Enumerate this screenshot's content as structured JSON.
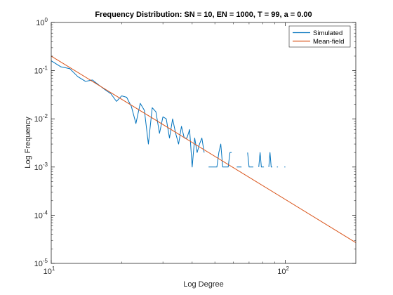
{
  "chart_data": {
    "type": "line",
    "title": "Frequency Distribution: SN = 10, EN = 1000, T = 99, a = 0.00",
    "xlabel": "Log Degree",
    "ylabel": "Log Frequency",
    "xscale": "log",
    "yscale": "log",
    "xlim": [
      10,
      200
    ],
    "ylim": [
      1e-05,
      1
    ],
    "x_ticks": [
      {
        "value": 10,
        "mantissa": "10",
        "exp": "1"
      },
      {
        "value": 100,
        "mantissa": "10",
        "exp": "2"
      }
    ],
    "y_ticks": [
      {
        "value": 1,
        "mantissa": "10",
        "exp": "0"
      },
      {
        "value": 0.1,
        "mantissa": "10",
        "exp": "-1"
      },
      {
        "value": 0.01,
        "mantissa": "10",
        "exp": "-2"
      },
      {
        "value": 0.001,
        "mantissa": "10",
        "exp": "-3"
      },
      {
        "value": 0.0001,
        "mantissa": "10",
        "exp": "-4"
      },
      {
        "value": 1e-05,
        "mantissa": "10",
        "exp": "-5"
      }
    ],
    "grid": false,
    "legend_position": "top-right",
    "series": [
      {
        "name": "Simulated",
        "color": "#0072BD",
        "points": [
          [
            10,
            0.16
          ],
          [
            11,
            0.12
          ],
          [
            12,
            0.11
          ],
          [
            13,
            0.075
          ],
          [
            14,
            0.06
          ],
          [
            15,
            0.064
          ],
          [
            16,
            0.05
          ],
          [
            17,
            0.04
          ],
          [
            18,
            0.033
          ],
          [
            19,
            0.023
          ],
          [
            20,
            0.03
          ],
          [
            21,
            0.028
          ],
          [
            22,
            0.018
          ],
          [
            23,
            0.008
          ],
          [
            24,
            0.021
          ],
          [
            25,
            0.015
          ],
          [
            26,
            0.003
          ],
          [
            27,
            0.017
          ],
          [
            28,
            0.014
          ],
          [
            29,
            0.005
          ],
          [
            30,
            0.011
          ],
          [
            31,
            0.01
          ],
          [
            32,
            0.004
          ],
          [
            33,
            0.01
          ],
          [
            34,
            0.005
          ],
          [
            35,
            0.003
          ],
          [
            36,
            0.007
          ],
          [
            37,
            0.004
          ],
          [
            38,
            0.004
          ],
          [
            39,
            0.006
          ],
          [
            40,
            0.001
          ],
          [
            41,
            0.004
          ],
          [
            42,
            0.002
          ],
          [
            43,
            0.003
          ],
          [
            44,
            0.004
          ],
          [
            45,
            0.002
          ],
          [
            46,
            null
          ],
          [
            47,
            0.001
          ],
          [
            48,
            0.001
          ],
          [
            49,
            0.001
          ],
          [
            50,
            0.001
          ],
          [
            51,
            0.001
          ],
          [
            52,
            0.002
          ],
          [
            53,
            0.003
          ],
          [
            54,
            0.001
          ],
          [
            55,
            0.001
          ],
          [
            56,
            0.001
          ],
          [
            57,
            0.001
          ],
          [
            58,
            0.002
          ],
          [
            59,
            0.002
          ],
          [
            60,
            null
          ],
          [
            62,
            0.001
          ],
          [
            63,
            0.001
          ],
          [
            64,
            0.001
          ],
          [
            65,
            0.001
          ],
          [
            66,
            null
          ],
          [
            69,
            0.002
          ],
          [
            70,
            0.001
          ],
          [
            71,
            0.001
          ],
          [
            72,
            0.001
          ],
          [
            73,
            0.001
          ],
          [
            74,
            null
          ],
          [
            77,
            0.001
          ],
          [
            78,
            0.002
          ],
          [
            79,
            0.001
          ],
          [
            80,
            0.001
          ],
          [
            81,
            0.001
          ],
          [
            82,
            null
          ],
          [
            85,
            0.001
          ],
          [
            86,
            0.002
          ],
          [
            87,
            0.001
          ],
          [
            88,
            0.001
          ],
          [
            89,
            null
          ],
          [
            92,
            0.001
          ],
          [
            93,
            0.001
          ],
          [
            94,
            null
          ],
          [
            99,
            0.001
          ],
          [
            100,
            0.001
          ],
          [
            101,
            null
          ],
          [
            108,
            0.001
          ],
          [
            109,
            null
          ],
          [
            117,
            0.001
          ]
        ]
      },
      {
        "name": "Mean-field",
        "color": "#D95319",
        "points": [
          [
            10,
            0.2
          ],
          [
            200,
            2.7e-05
          ]
        ]
      }
    ]
  }
}
